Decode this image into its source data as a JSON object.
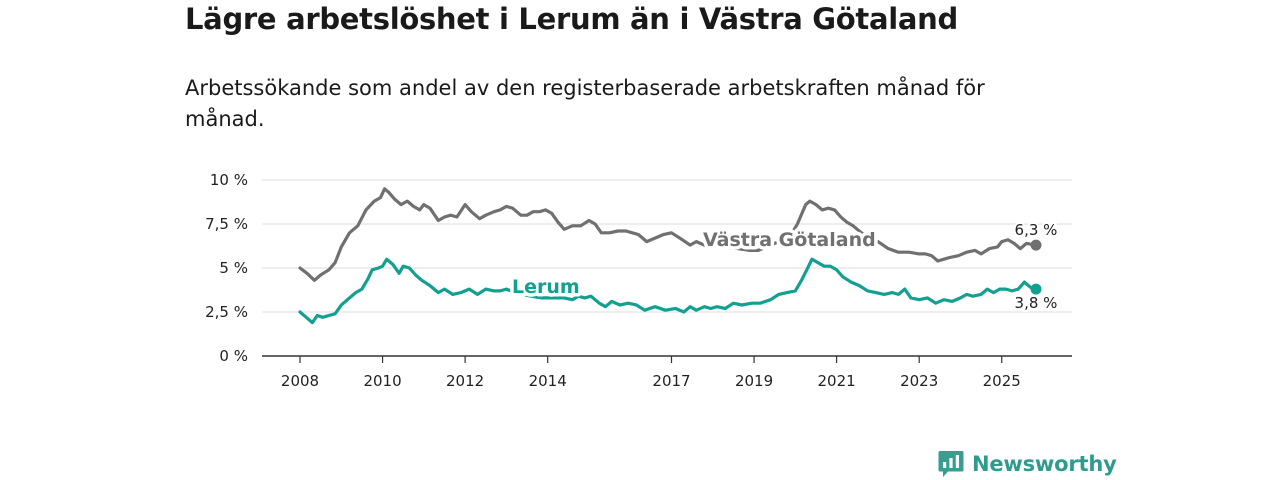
{
  "header": {
    "title": "Lägre arbetslöshet i Lerum än i Västra Götaland",
    "subtitle": "Arbetssökande som andel av den registerbaserade arbetskraften månad för månad."
  },
  "brand": {
    "name": "Newsworthy",
    "icon": "bar-chart-bubble-icon"
  },
  "colors": {
    "vg": "#707070",
    "lerum": "#14a090",
    "grid": "#dddddd",
    "axis": "#333333"
  },
  "chart_data": {
    "type": "line",
    "title": "Lägre arbetslöshet i Lerum än i Västra Götaland",
    "xlabel": "",
    "ylabel": "",
    "xlim": [
      2008.0,
      2025.83
    ],
    "ylim": [
      0,
      10
    ],
    "yticks": [
      0,
      2.5,
      5,
      7.5,
      10
    ],
    "ytick_labels": [
      "0 %",
      "2,5 %",
      "5 %",
      "7,5 %",
      "10 %"
    ],
    "xticks": [
      2008,
      2010,
      2012,
      2014,
      2017,
      2019,
      2021,
      2023,
      2025
    ],
    "xtick_labels": [
      "2008",
      "2010",
      "2012",
      "2014",
      "2017",
      "2019",
      "2021",
      "2023",
      "2025"
    ],
    "grid": true,
    "series": [
      {
        "name": "Västra Götaland",
        "color": "#707070",
        "end_label": "6,3 %",
        "points": [
          [
            2008.0,
            5.0
          ],
          [
            2008.17,
            4.7
          ],
          [
            2008.35,
            4.3
          ],
          [
            2008.5,
            4.6
          ],
          [
            2008.7,
            4.9
          ],
          [
            2008.85,
            5.3
          ],
          [
            2009.0,
            6.2
          ],
          [
            2009.2,
            7.0
          ],
          [
            2009.4,
            7.4
          ],
          [
            2009.6,
            8.3
          ],
          [
            2009.8,
            8.8
          ],
          [
            2009.95,
            9.0
          ],
          [
            2010.05,
            9.5
          ],
          [
            2010.15,
            9.3
          ],
          [
            2010.3,
            8.9
          ],
          [
            2010.45,
            8.6
          ],
          [
            2010.6,
            8.8
          ],
          [
            2010.75,
            8.5
          ],
          [
            2010.9,
            8.3
          ],
          [
            2011.0,
            8.6
          ],
          [
            2011.15,
            8.4
          ],
          [
            2011.35,
            7.7
          ],
          [
            2011.5,
            7.9
          ],
          [
            2011.65,
            8.0
          ],
          [
            2011.8,
            7.9
          ],
          [
            2012.0,
            8.6
          ],
          [
            2012.15,
            8.2
          ],
          [
            2012.35,
            7.8
          ],
          [
            2012.5,
            8.0
          ],
          [
            2012.7,
            8.2
          ],
          [
            2012.85,
            8.3
          ],
          [
            2013.0,
            8.5
          ],
          [
            2013.15,
            8.4
          ],
          [
            2013.35,
            8.0
          ],
          [
            2013.5,
            8.0
          ],
          [
            2013.65,
            8.2
          ],
          [
            2013.8,
            8.2
          ],
          [
            2013.95,
            8.3
          ],
          [
            2014.1,
            8.1
          ],
          [
            2014.25,
            7.6
          ],
          [
            2014.4,
            7.2
          ],
          [
            2014.6,
            7.4
          ],
          [
            2014.8,
            7.4
          ],
          [
            2015.0,
            7.7
          ],
          [
            2015.15,
            7.5
          ],
          [
            2015.3,
            7.0
          ],
          [
            2015.5,
            7.0
          ],
          [
            2015.7,
            7.1
          ],
          [
            2015.9,
            7.1
          ],
          [
            2016.05,
            7.0
          ],
          [
            2016.2,
            6.9
          ],
          [
            2016.4,
            6.5
          ],
          [
            2016.6,
            6.7
          ],
          [
            2016.8,
            6.9
          ],
          [
            2017.0,
            7.0
          ],
          [
            2017.2,
            6.7
          ],
          [
            2017.45,
            6.3
          ],
          [
            2017.6,
            6.5
          ],
          [
            2017.8,
            6.3
          ],
          [
            2018.0,
            6.3
          ],
          [
            2018.3,
            6.2
          ],
          [
            2018.6,
            6.1
          ],
          [
            2018.9,
            6.0
          ],
          [
            2019.1,
            6.0
          ],
          [
            2019.3,
            6.2
          ],
          [
            2019.6,
            6.5
          ],
          [
            2019.85,
            6.7
          ],
          [
            2020.05,
            7.5
          ],
          [
            2020.25,
            8.6
          ],
          [
            2020.35,
            8.8
          ],
          [
            2020.5,
            8.6
          ],
          [
            2020.65,
            8.3
          ],
          [
            2020.8,
            8.4
          ],
          [
            2020.95,
            8.3
          ],
          [
            2021.1,
            7.9
          ],
          [
            2021.25,
            7.6
          ],
          [
            2021.4,
            7.4
          ],
          [
            2021.6,
            7.0
          ],
          [
            2021.8,
            6.7
          ],
          [
            2022.0,
            6.5
          ],
          [
            2022.25,
            6.1
          ],
          [
            2022.5,
            5.9
          ],
          [
            2022.75,
            5.9
          ],
          [
            2023.0,
            5.8
          ],
          [
            2023.15,
            5.8
          ],
          [
            2023.3,
            5.7
          ],
          [
            2023.45,
            5.4
          ],
          [
            2023.6,
            5.5
          ],
          [
            2023.75,
            5.6
          ],
          [
            2023.95,
            5.7
          ],
          [
            2024.15,
            5.9
          ],
          [
            2024.35,
            6.0
          ],
          [
            2024.5,
            5.8
          ],
          [
            2024.7,
            6.1
          ],
          [
            2024.9,
            6.2
          ],
          [
            2025.0,
            6.5
          ],
          [
            2025.15,
            6.6
          ],
          [
            2025.3,
            6.4
          ],
          [
            2025.45,
            6.1
          ],
          [
            2025.6,
            6.4
          ],
          [
            2025.83,
            6.3
          ]
        ]
      },
      {
        "name": "Lerum",
        "color": "#14a090",
        "end_label": "3,8 %",
        "points": [
          [
            2008.0,
            2.5
          ],
          [
            2008.15,
            2.2
          ],
          [
            2008.3,
            1.9
          ],
          [
            2008.42,
            2.3
          ],
          [
            2008.55,
            2.2
          ],
          [
            2008.7,
            2.3
          ],
          [
            2008.85,
            2.4
          ],
          [
            2009.0,
            2.9
          ],
          [
            2009.2,
            3.3
          ],
          [
            2009.35,
            3.6
          ],
          [
            2009.5,
            3.8
          ],
          [
            2009.65,
            4.4
          ],
          [
            2009.75,
            4.9
          ],
          [
            2009.9,
            5.0
          ],
          [
            2010.0,
            5.1
          ],
          [
            2010.1,
            5.5
          ],
          [
            2010.25,
            5.2
          ],
          [
            2010.4,
            4.7
          ],
          [
            2010.5,
            5.1
          ],
          [
            2010.65,
            5.0
          ],
          [
            2010.8,
            4.6
          ],
          [
            2010.95,
            4.3
          ],
          [
            2011.15,
            4.0
          ],
          [
            2011.35,
            3.6
          ],
          [
            2011.5,
            3.8
          ],
          [
            2011.7,
            3.5
          ],
          [
            2011.9,
            3.6
          ],
          [
            2012.1,
            3.8
          ],
          [
            2012.3,
            3.5
          ],
          [
            2012.5,
            3.8
          ],
          [
            2012.7,
            3.7
          ],
          [
            2012.85,
            3.7
          ],
          [
            2013.0,
            3.8
          ],
          [
            2013.2,
            3.6
          ],
          [
            2013.4,
            3.5
          ],
          [
            2013.6,
            3.4
          ],
          [
            2013.85,
            3.3
          ],
          [
            2014.1,
            3.3
          ],
          [
            2014.4,
            3.3
          ],
          [
            2014.6,
            3.2
          ],
          [
            2014.75,
            3.4
          ],
          [
            2014.9,
            3.3
          ],
          [
            2015.05,
            3.4
          ],
          [
            2015.25,
            3.0
          ],
          [
            2015.4,
            2.8
          ],
          [
            2015.55,
            3.1
          ],
          [
            2015.75,
            2.9
          ],
          [
            2015.95,
            3.0
          ],
          [
            2016.15,
            2.9
          ],
          [
            2016.35,
            2.6
          ],
          [
            2016.6,
            2.8
          ],
          [
            2016.85,
            2.6
          ],
          [
            2017.1,
            2.7
          ],
          [
            2017.3,
            2.5
          ],
          [
            2017.45,
            2.8
          ],
          [
            2017.6,
            2.6
          ],
          [
            2017.8,
            2.8
          ],
          [
            2017.95,
            2.7
          ],
          [
            2018.1,
            2.8
          ],
          [
            2018.3,
            2.7
          ],
          [
            2018.5,
            3.0
          ],
          [
            2018.7,
            2.9
          ],
          [
            2018.95,
            3.0
          ],
          [
            2019.15,
            3.0
          ],
          [
            2019.4,
            3.2
          ],
          [
            2019.6,
            3.5
          ],
          [
            2019.8,
            3.6
          ],
          [
            2020.0,
            3.7
          ],
          [
            2020.15,
            4.3
          ],
          [
            2020.3,
            5.0
          ],
          [
            2020.4,
            5.5
          ],
          [
            2020.55,
            5.3
          ],
          [
            2020.7,
            5.1
          ],
          [
            2020.85,
            5.1
          ],
          [
            2021.0,
            4.9
          ],
          [
            2021.15,
            4.5
          ],
          [
            2021.35,
            4.2
          ],
          [
            2021.55,
            4.0
          ],
          [
            2021.75,
            3.7
          ],
          [
            2021.95,
            3.6
          ],
          [
            2022.15,
            3.5
          ],
          [
            2022.35,
            3.6
          ],
          [
            2022.5,
            3.5
          ],
          [
            2022.65,
            3.8
          ],
          [
            2022.8,
            3.3
          ],
          [
            2023.0,
            3.2
          ],
          [
            2023.2,
            3.3
          ],
          [
            2023.4,
            3.0
          ],
          [
            2023.6,
            3.2
          ],
          [
            2023.8,
            3.1
          ],
          [
            2024.0,
            3.3
          ],
          [
            2024.15,
            3.5
          ],
          [
            2024.3,
            3.4
          ],
          [
            2024.5,
            3.5
          ],
          [
            2024.65,
            3.8
          ],
          [
            2024.8,
            3.6
          ],
          [
            2024.95,
            3.8
          ],
          [
            2025.1,
            3.8
          ],
          [
            2025.25,
            3.7
          ],
          [
            2025.4,
            3.8
          ],
          [
            2025.55,
            4.2
          ],
          [
            2025.7,
            3.9
          ],
          [
            2025.83,
            3.8
          ]
        ]
      }
    ]
  }
}
